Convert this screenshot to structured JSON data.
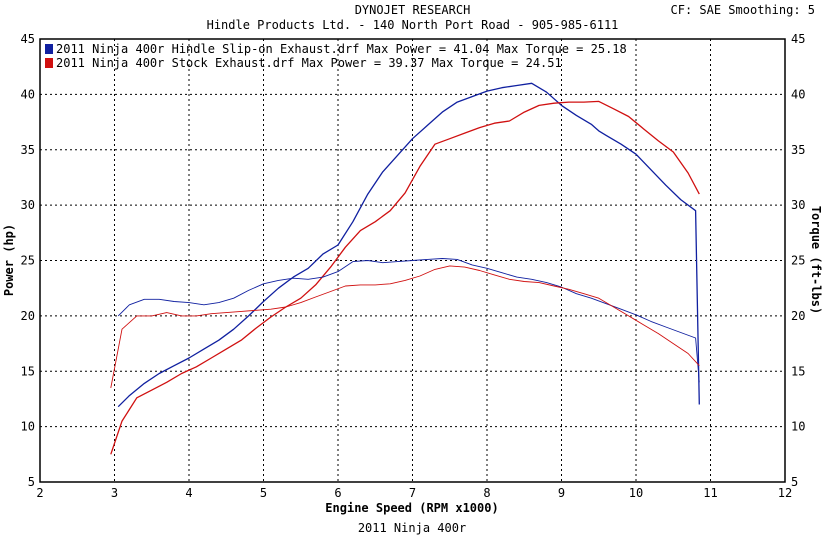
{
  "header": {
    "title": "DYNOJET RESEARCH",
    "subtitle": "Hindle Products Ltd. - 140 North Port Road - 905-985-6111",
    "correction": "CF: SAE  Smoothing: 5"
  },
  "footer": {
    "caption": "2011 Ninja 400r"
  },
  "colors": {
    "hindle": "#1020a0",
    "stock": "#d01010",
    "grid": "#000000",
    "frame": "#000000"
  },
  "chart_data": {
    "type": "line",
    "xlabel": "Engine Speed (RPM x1000)",
    "ylabel_left": "Power (hp)",
    "ylabel_right": "Torque (ft-lbs)",
    "xlim": [
      2,
      12
    ],
    "ylim": [
      5,
      45
    ],
    "xticks": [
      2,
      3,
      4,
      5,
      6,
      7,
      8,
      9,
      10,
      11,
      12
    ],
    "yticks": [
      5,
      10,
      15,
      20,
      25,
      30,
      35,
      40,
      45
    ],
    "grid": true,
    "legend": [
      "2011 Ninja 400r Hindle Slip-on Exhaust.drf Max Power = 41.04    Max Torque = 25.18",
      "2011 Ninja 400r Stock Exhaust.drf Max Power = 39.37    Max Torque = 24.51"
    ],
    "series": [
      {
        "name": "2011 Ninja 400r Hindle Slip-on Exhaust.drf",
        "quantity": "Power",
        "color": "#1020a0",
        "x": [
          3.05,
          3.2,
          3.4,
          3.6,
          3.8,
          4.0,
          4.2,
          4.4,
          4.6,
          4.8,
          5.0,
          5.2,
          5.4,
          5.6,
          5.8,
          6.0,
          6.2,
          6.4,
          6.6,
          6.8,
          7.0,
          7.2,
          7.4,
          7.6,
          7.8,
          8.0,
          8.2,
          8.4,
          8.6,
          8.8,
          9.0,
          9.2,
          9.4,
          9.5,
          9.6,
          9.8,
          10.0,
          10.2,
          10.4,
          10.6,
          10.8,
          10.85
        ],
        "y": [
          11.8,
          12.8,
          13.9,
          14.8,
          15.5,
          16.2,
          17.0,
          17.8,
          18.8,
          20.0,
          21.3,
          22.5,
          23.5,
          24.3,
          25.6,
          26.4,
          28.5,
          31.0,
          33.0,
          34.5,
          36.0,
          37.2,
          38.4,
          39.3,
          39.8,
          40.3,
          40.6,
          40.8,
          41.0,
          40.2,
          39.0,
          38.1,
          37.3,
          36.7,
          36.3,
          35.5,
          34.6,
          33.2,
          31.8,
          30.5,
          29.5,
          12.0
        ]
      },
      {
        "name": "2011 Ninja 400r Stock Exhaust.drf",
        "quantity": "Power",
        "color": "#d01010",
        "x": [
          2.95,
          3.1,
          3.3,
          3.5,
          3.7,
          3.9,
          4.1,
          4.3,
          4.5,
          4.7,
          4.9,
          5.1,
          5.3,
          5.5,
          5.7,
          5.9,
          6.1,
          6.3,
          6.5,
          6.7,
          6.9,
          7.1,
          7.3,
          7.5,
          7.7,
          7.9,
          8.1,
          8.3,
          8.5,
          8.7,
          8.9,
          9.1,
          9.3,
          9.5,
          9.7,
          9.9,
          10.1,
          10.3,
          10.5,
          10.7,
          10.85
        ],
        "y": [
          7.5,
          10.5,
          12.6,
          13.3,
          14.0,
          14.8,
          15.4,
          16.2,
          17.0,
          17.8,
          18.9,
          19.9,
          20.8,
          21.6,
          22.8,
          24.4,
          26.2,
          27.7,
          28.5,
          29.5,
          31.1,
          33.5,
          35.5,
          36.0,
          36.5,
          37.0,
          37.4,
          37.6,
          38.4,
          39.0,
          39.2,
          39.3,
          39.3,
          39.37,
          38.7,
          38.0,
          36.9,
          35.8,
          34.8,
          32.9,
          31.0
        ]
      },
      {
        "name": "2011 Ninja 400r Hindle Slip-on Exhaust.drf",
        "quantity": "Torque",
        "color": "#1020a0",
        "x": [
          3.05,
          3.2,
          3.4,
          3.6,
          3.8,
          4.0,
          4.2,
          4.4,
          4.6,
          4.8,
          5.0,
          5.2,
          5.4,
          5.6,
          5.8,
          6.0,
          6.2,
          6.4,
          6.6,
          6.8,
          7.0,
          7.2,
          7.4,
          7.6,
          7.8,
          8.0,
          8.2,
          8.4,
          8.6,
          8.8,
          9.0,
          9.2,
          9.4,
          9.6,
          9.8,
          10.0,
          10.2,
          10.4,
          10.6,
          10.8,
          10.85
        ],
        "y": [
          20.0,
          21.0,
          21.5,
          21.5,
          21.3,
          21.2,
          21.0,
          21.2,
          21.6,
          22.3,
          22.9,
          23.2,
          23.4,
          23.3,
          23.5,
          24.0,
          24.9,
          25.0,
          24.8,
          24.9,
          25.0,
          25.1,
          25.18,
          25.1,
          24.6,
          24.3,
          23.9,
          23.5,
          23.3,
          23.0,
          22.6,
          22.0,
          21.6,
          21.1,
          20.6,
          20.1,
          19.5,
          19.0,
          18.5,
          18.0,
          14.0
        ]
      },
      {
        "name": "2011 Ninja 400r Stock Exhaust.drf",
        "quantity": "Torque",
        "color": "#d01010",
        "x": [
          2.95,
          3.1,
          3.3,
          3.5,
          3.7,
          3.9,
          4.1,
          4.3,
          4.5,
          4.7,
          4.9,
          5.1,
          5.3,
          5.5,
          5.7,
          5.9,
          6.1,
          6.3,
          6.5,
          6.7,
          6.9,
          7.1,
          7.3,
          7.5,
          7.7,
          7.9,
          8.1,
          8.3,
          8.5,
          8.7,
          8.9,
          9.1,
          9.3,
          9.5,
          9.7,
          9.9,
          10.1,
          10.3,
          10.5,
          10.7,
          10.85
        ],
        "y": [
          13.5,
          18.8,
          20.0,
          20.0,
          20.3,
          20.0,
          20.0,
          20.2,
          20.3,
          20.4,
          20.5,
          20.6,
          20.8,
          21.2,
          21.7,
          22.2,
          22.7,
          22.8,
          22.8,
          22.9,
          23.2,
          23.6,
          24.2,
          24.51,
          24.4,
          24.1,
          23.7,
          23.3,
          23.1,
          23.0,
          22.7,
          22.4,
          22.0,
          21.6,
          20.8,
          20.0,
          19.2,
          18.4,
          17.5,
          16.6,
          15.5
        ]
      }
    ]
  }
}
